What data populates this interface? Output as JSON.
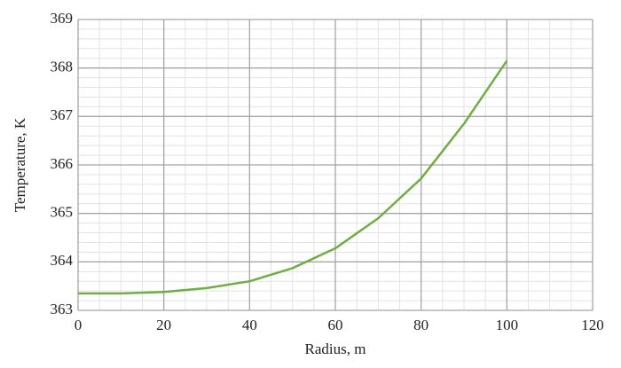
{
  "chart_data": {
    "type": "line",
    "x_label": "Radius, m",
    "y_label": "Temperature, K",
    "x": [
      0,
      10,
      20,
      30,
      40,
      50,
      60,
      70,
      80,
      90,
      100
    ],
    "series": [
      {
        "name": "Temperature",
        "color": "#70ad47",
        "values": [
          363.35,
          363.35,
          363.38,
          363.46,
          363.6,
          363.87,
          364.28,
          364.9,
          365.72,
          366.85,
          368.15
        ]
      }
    ],
    "xlim": [
      0,
      120
    ],
    "xticks": [
      0,
      20,
      40,
      60,
      80,
      100,
      120
    ],
    "ylim": [
      363,
      369
    ],
    "yticks": [
      363,
      364,
      365,
      366,
      367,
      368,
      369
    ],
    "grid": true
  }
}
